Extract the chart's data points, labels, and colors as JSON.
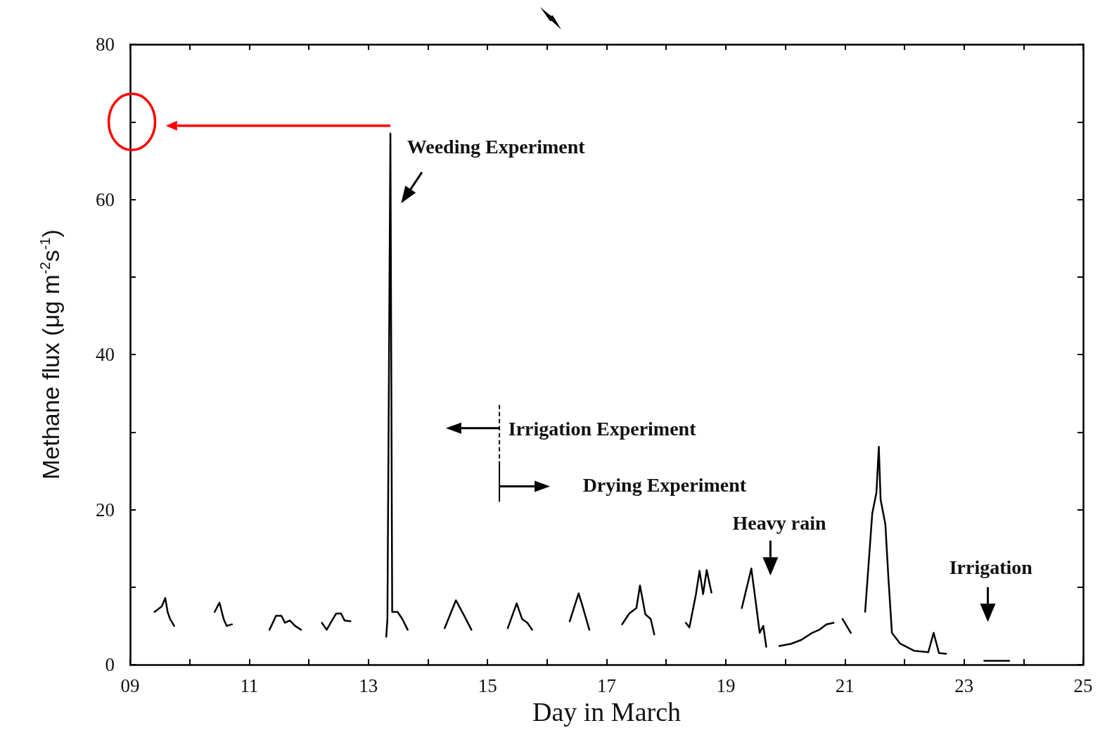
{
  "chart_data": {
    "type": "line",
    "xlabel": "Day in March",
    "ylabel": "Methane flux (μg m$^{-2}$s$^{-1}$)",
    "x": [
      9.41,
      9.53,
      9.59,
      9.63,
      9.67,
      9.74,
      10.1,
      10.42,
      10.5,
      10.57,
      10.62,
      10.71,
      11.0,
      11.34,
      11.45,
      11.54,
      11.6,
      11.68,
      11.77,
      11.87,
      12.05,
      12.22,
      12.3,
      12.39,
      12.46,
      12.54,
      12.6,
      12.7,
      13.0,
      13.3,
      13.32,
      13.37,
      13.4,
      13.49,
      13.57,
      13.66,
      14.0,
      14.28,
      14.47,
      14.61,
      14.73,
      15.0,
      15.34,
      15.49,
      15.58,
      15.67,
      15.75,
      16.0,
      16.38,
      16.53,
      16.59,
      16.71,
      17.0,
      17.26,
      17.38,
      17.5,
      17.56,
      17.65,
      17.74,
      17.8,
      18.1,
      18.33,
      18.39,
      18.5,
      18.56,
      18.62,
      18.68,
      18.76,
      19.0,
      19.27,
      19.43,
      19.51,
      19.57,
      19.63,
      19.68,
      19.8,
      19.9,
      20.1,
      20.27,
      20.45,
      20.57,
      20.69,
      20.81,
      20.9,
      20.96,
      21.1,
      21.2,
      21.34,
      21.46,
      21.53,
      21.57,
      21.6,
      21.68,
      21.73,
      21.79,
      21.93,
      22.16,
      22.4,
      22.49,
      22.58,
      22.7,
      23.0,
      23.34,
      23.76
    ],
    "values": [
      6.8,
      7.5,
      8.6,
      6.8,
      5.9,
      5.0,
      null,
      6.8,
      8.0,
      5.9,
      5.0,
      5.2,
      null,
      4.5,
      6.3,
      6.3,
      5.4,
      5.7,
      5.0,
      4.5,
      null,
      5.4,
      4.5,
      5.7,
      6.6,
      6.6,
      5.7,
      5.6,
      null,
      3.6,
      5.9,
      68.5,
      6.8,
      6.8,
      5.9,
      4.5,
      null,
      4.7,
      8.3,
      6.3,
      4.5,
      null,
      4.7,
      7.9,
      5.9,
      5.4,
      4.5,
      null,
      5.6,
      9.2,
      7.7,
      4.5,
      null,
      5.2,
      6.6,
      7.3,
      10.2,
      6.5,
      5.9,
      3.9,
      null,
      5.4,
      4.8,
      9.1,
      12.1,
      9.1,
      12.2,
      9.3,
      null,
      7.3,
      12.4,
      7.7,
      4.1,
      5.0,
      2.3,
      null,
      2.4,
      2.7,
      3.2,
      4.1,
      4.5,
      5.2,
      5.4,
      null,
      5.9,
      4.1,
      null,
      6.8,
      19.5,
      22.2,
      28.1,
      21.3,
      18.1,
      11.3,
      4.1,
      2.7,
      1.8,
      1.6,
      4.1,
      1.5,
      1.4,
      null,
      0.5,
      0.5
    ],
    "color": "#000000",
    "line_style": "solid",
    "marker": "none",
    "xlim": [
      9,
      25
    ],
    "xticks": [
      {
        "value": 9,
        "label": "09"
      },
      {
        "value": 10,
        "label": null
      },
      11,
      {
        "value": 12,
        "label": null
      },
      13,
      {
        "value": 14,
        "label": null
      },
      15,
      {
        "value": 16,
        "label": null
      },
      17,
      {
        "value": 18,
        "label": null
      },
      19,
      {
        "value": 20,
        "label": null
      },
      21,
      {
        "value": 22,
        "label": null
      },
      23,
      {
        "value": 24,
        "label": null
      },
      25
    ],
    "ylim": [
      0,
      80
    ],
    "yticks": [
      0,
      {
        "value": 10,
        "label": null
      },
      20,
      {
        "value": 30,
        "label": null
      },
      40,
      {
        "value": 50,
        "label": null
      },
      60,
      {
        "value": 70,
        "label": null
      },
      80
    ],
    "annotations": [
      "Weeding Experiment",
      "Irrigation Experiment",
      "Drying Experiment",
      "Heavy rain",
      "Irrigation"
    ]
  }
}
